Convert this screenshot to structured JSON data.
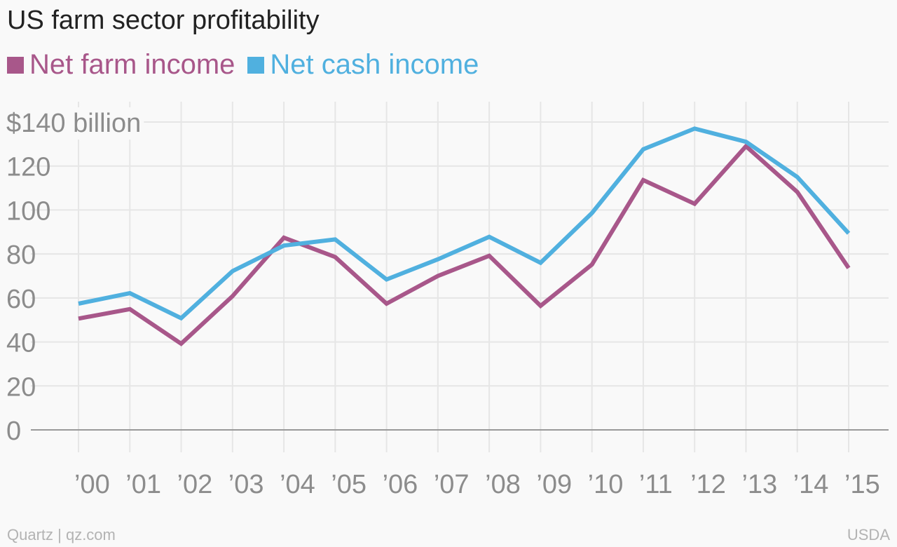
{
  "chart_data": {
    "type": "line",
    "title": "US farm sector profitability",
    "categories": [
      "’00",
      "’01",
      "’02",
      "’03",
      "’04",
      "’05",
      "’06",
      "’07",
      "’08",
      "’09",
      "’10",
      "’11",
      "’12",
      "’13",
      "’14",
      "’15"
    ],
    "series": [
      {
        "name": "Net farm income",
        "color": "#a8578a",
        "values": [
          50.6,
          54.9,
          39.2,
          60.8,
          87.4,
          78.6,
          57.4,
          70.0,
          79.2,
          56.4,
          75.2,
          113.6,
          102.8,
          129.0,
          108.2,
          73.6
        ]
      },
      {
        "name": "Net cash income",
        "color": "#50b0df",
        "values": [
          57.4,
          62.2,
          50.8,
          72.2,
          83.8,
          86.6,
          68.4,
          77.6,
          87.8,
          76.0,
          98.6,
          127.6,
          137.0,
          131.0,
          115.0,
          89.4
        ]
      }
    ],
    "y_ticks": [
      "$140 billion",
      "120",
      "100",
      "80",
      "60",
      "40",
      "20",
      "0"
    ],
    "y_tick_values": [
      140,
      120,
      100,
      80,
      60,
      40,
      20,
      0
    ],
    "ylim": [
      0,
      140
    ],
    "grid": true,
    "legend_position": "top-left"
  },
  "footer": {
    "source_left": "Quartz | qz.com",
    "source_right": "USDA"
  }
}
